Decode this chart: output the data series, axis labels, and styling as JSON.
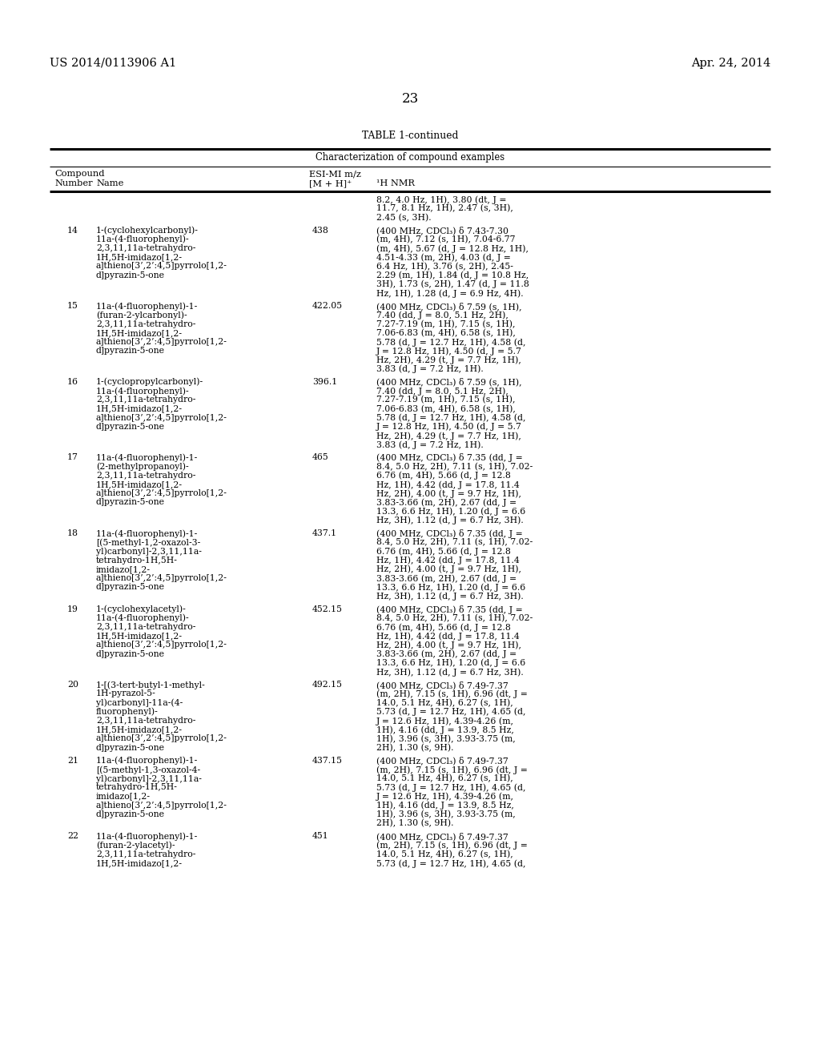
{
  "header_left": "US 2014/0113906 A1",
  "header_right": "Apr. 24, 2014",
  "page_number": "23",
  "table_title": "TABLE 1-continued",
  "table_subtitle": "Characterization of compound examples",
  "background_color": "#ffffff",
  "text_color": "#000000",
  "rows": [
    {
      "number": "",
      "name": "",
      "mz": "",
      "nmr": "8.2, 4.0 Hz, 1H), 3.80 (dt, J =\n11.7, 8.1 Hz, 1H), 2.47 (s, 3H),\n2.45 (s, 3H)."
    },
    {
      "number": "14",
      "name": "1-(cyclohexylcarbonyl)-\n11a-(4-fluorophenyl)-\n2,3,11,11a-tetrahydro-\n1H,5H-imidazo[1,2-\na]thieno[3’,2’:4,5]pyrrolo[1,2-\nd]pyrazin-5-one",
      "mz": "438",
      "nmr": "(400 MHz, CDCl₃) δ 7.43-7.30\n(m, 4H), 7.12 (s, 1H), 7.04-6.77\n(m, 4H), 5.67 (d, J = 12.8 Hz, 1H),\n4.51-4.33 (m, 2H), 4.03 (d, J =\n6.4 Hz, 1H), 3.76 (s, 2H), 2.45-\n2.29 (m, 1H), 1.84 (d, J = 10.8 Hz,\n3H), 1.73 (s, 2H), 1.47 (d, J = 11.8\nHz, 1H), 1.28 (d, J = 6.9 Hz, 4H)."
    },
    {
      "number": "15",
      "name": "11a-(4-fluorophenyl)-1-\n(furan-2-ylcarbonyl)-\n2,3,11,11a-tetrahydro-\n1H,5H-imidazo[1,2-\na]thieno[3’,2’:4,5]pyrrolo[1,2-\nd]pyrazin-5-one",
      "mz": "422.05",
      "nmr": "(400 MHz, CDCl₃) δ 7.59 (s, 1H),\n7.40 (dd, J = 8.0, 5.1 Hz, 2H),\n7.27-7.19 (m, 1H), 7.15 (s, 1H),\n7.06-6.83 (m, 4H), 6.58 (s, 1H),\n5.78 (d, J = 12.7 Hz, 1H), 4.58 (d,\nJ = 12.8 Hz, 1H), 4.50 (d, J = 5.7\nHz, 2H), 4.29 (t, J = 7.7 Hz, 1H),\n3.83 (d, J = 7.2 Hz, 1H)."
    },
    {
      "number": "16",
      "name": "1-(cyclopropylcarbonyl)-\n11a-(4-fluorophenyl)-\n2,3,11,11a-tetrahydro-\n1H,5H-imidazo[1,2-\na]thieno[3’,2’:4,5]pyrrolo[1,2-\nd]pyrazin-5-one",
      "mz": "396.1",
      "nmr": "(400 MHz, CDCl₃) δ 7.59 (s, 1H),\n7.40 (dd, J = 8.0, 5.1 Hz, 2H),\n7.27-7.19 (m, 1H), 7.15 (s, 1H),\n7.06-6.83 (m, 4H), 6.58 (s, 1H),\n5.78 (d, J = 12.7 Hz, 1H), 4.58 (d,\nJ = 12.8 Hz, 1H), 4.50 (d, J = 5.7\nHz, 2H), 4.29 (t, J = 7.7 Hz, 1H),\n3.83 (d, J = 7.2 Hz, 1H)."
    },
    {
      "number": "17",
      "name": "11a-(4-fluorophenyl)-1-\n(2-methylpropanoyl)-\n2,3,11,11a-tetrahydro-\n1H,5H-imidazo[1,2-\na]thieno[3’,2’:4,5]pyrrolo[1,2-\nd]pyrazin-5-one",
      "mz": "465",
      "nmr": "(400 MHz, CDCl₃) δ 7.35 (dd, J =\n8.4, 5.0 Hz, 2H), 7.11 (s, 1H), 7.02-\n6.76 (m, 4H), 5.66 (d, J = 12.8\nHz, 1H), 4.42 (dd, J = 17.8, 11.4\nHz, 2H), 4.00 (t, J = 9.7 Hz, 1H),\n3.83-3.66 (m, 2H), 2.67 (dd, J =\n13.3, 6.6 Hz, 1H), 1.20 (d, J = 6.6\nHz, 3H), 1.12 (d, J = 6.7 Hz, 3H)."
    },
    {
      "number": "18",
      "name": "11a-(4-fluorophenyl)-1-\n[(5-methyl-1,2-oxazol-3-\nyl)carbonyl]-2,3,11,11a-\ntetrahydro-1H,5H-\nimidazo[1,2-\na]thieno[3’,2’:4,5]pyrrolo[1,2-\nd]pyrazin-5-one",
      "mz": "437.1",
      "nmr": "(400 MHz, CDCl₃) δ 7.35 (dd, J =\n8.4, 5.0 Hz, 2H), 7.11 (s, 1H), 7.02-\n6.76 (m, 4H), 5.66 (d, J = 12.8\nHz, 1H), 4.42 (dd, J = 17.8, 11.4\nHz, 2H), 4.00 (t, J = 9.7 Hz, 1H),\n3.83-3.66 (m, 2H), 2.67 (dd, J =\n13.3, 6.6 Hz, 1H), 1.20 (d, J = 6.6\nHz, 3H), 1.12 (d, J = 6.7 Hz, 3H)."
    },
    {
      "number": "19",
      "name": "1-(cyclohexylacetyl)-\n11a-(4-fluorophenyl)-\n2,3,11,11a-tetrahydro-\n1H,5H-imidazo[1,2-\na]thieno[3’,2’:4,5]pyrrolo[1,2-\nd]pyrazin-5-one",
      "mz": "452.15",
      "nmr": "(400 MHz, CDCl₃) δ 7.35 (dd, J =\n8.4, 5.0 Hz, 2H), 7.11 (s, 1H), 7.02-\n6.76 (m, 4H), 5.66 (d, J = 12.8\nHz, 1H), 4.42 (dd, J = 17.8, 11.4\nHz, 2H), 4.00 (t, J = 9.7 Hz, 1H),\n3.83-3.66 (m, 2H), 2.67 (dd, J =\n13.3, 6.6 Hz, 1H), 1.20 (d, J = 6.6\nHz, 3H), 1.12 (d, J = 6.7 Hz, 3H)."
    },
    {
      "number": "20",
      "name": "1-[(3-tert-butyl-1-methyl-\n1H-pyrazol-5-\nyl)carbonyl]-11a-(4-\nfluorophenyl)-\n2,3,11,11a-tetrahydro-\n1H,5H-imidazo[1,2-\na]thieno[3’,2’:4,5]pyrrolo[1,2-\nd]pyrazin-5-one",
      "mz": "492.15",
      "nmr": "(400 MHz, CDCl₃) δ 7.49-7.37\n(m, 2H), 7.15 (s, 1H), 6.96 (dt, J =\n14.0, 5.1 Hz, 4H), 6.27 (s, 1H),\n5.73 (d, J = 12.7 Hz, 1H), 4.65 (d,\nJ = 12.6 Hz, 1H), 4.39-4.26 (m,\n1H), 4.16 (dd, J = 13.9, 8.5 Hz,\n1H), 3.96 (s, 3H), 3.93-3.75 (m,\n2H), 1.30 (s, 9H)."
    },
    {
      "number": "21",
      "name": "11a-(4-fluorophenyl)-1-\n[(5-methyl-1,3-oxazol-4-\nyl)carbonyl]-2,3,11,11a-\ntetrahydro-1H,5H-\nimidazo[1,2-\na]thieno[3’,2’:4,5]pyrrolo[1,2-\nd]pyrazin-5-one",
      "mz": "437.15",
      "nmr": "(400 MHz, CDCl₃) δ 7.49-7.37\n(m, 2H), 7.15 (s, 1H), 6.96 (dt, J =\n14.0, 5.1 Hz, 4H), 6.27 (s, 1H),\n5.73 (d, J = 12.7 Hz, 1H), 4.65 (d,\nJ = 12.6 Hz, 1H), 4.39-4.26 (m,\n1H), 4.16 (dd, J = 13.9, 8.5 Hz,\n1H), 3.96 (s, 3H), 3.93-3.75 (m,\n2H), 1.30 (s, 9H)."
    },
    {
      "number": "22",
      "name": "11a-(4-fluorophenyl)-1-\n(furan-2-ylacetyl)-\n2,3,11,11a-tetrahydro-\n1H,5H-imidazo[1,2-",
      "mz": "451",
      "nmr": "(400 MHz, CDCl₃) δ 7.49-7.37\n(m, 2H), 7.15 (s, 1H), 6.96 (dt, J =\n14.0, 5.1 Hz, 4H), 6.27 (s, 1H),\n5.73 (d, J = 12.7 Hz, 1H), 4.65 (d,"
    }
  ]
}
